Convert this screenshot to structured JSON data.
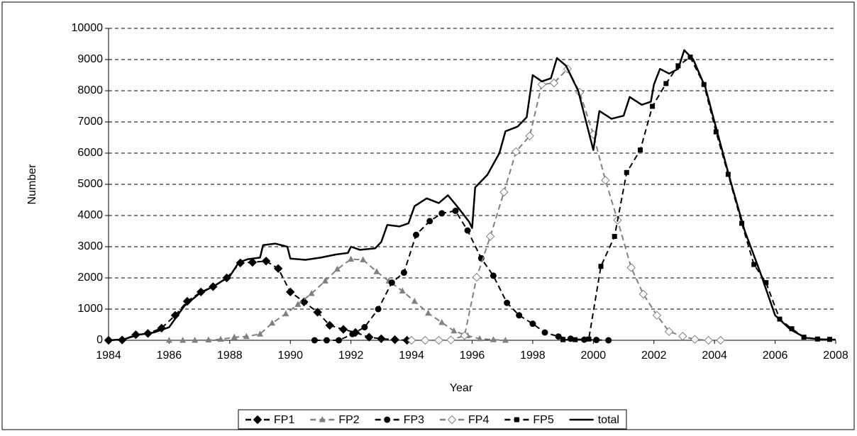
{
  "chart_data": {
    "type": "line",
    "x_label": "Year",
    "y_label": "Number",
    "xlim": [
      1984,
      2008
    ],
    "xticks": [
      1984,
      1986,
      1988,
      1990,
      1992,
      1994,
      1996,
      1998,
      2000,
      2002,
      2004,
      2006,
      2008
    ],
    "ylim": [
      0,
      10000
    ],
    "yticks": [
      0,
      1000,
      2000,
      3000,
      4000,
      5000,
      6000,
      7000,
      8000,
      9000,
      10000
    ],
    "grid": true,
    "legend": "bottom",
    "series": [
      {
        "name": "FP1",
        "color": "#000000",
        "dashed": true,
        "marker": "diamond",
        "x": [
          1984.0,
          1984.45,
          1984.9,
          1985.3,
          1985.75,
          1986.2,
          1986.6,
          1987.05,
          1987.45,
          1987.9,
          1988.35,
          1988.75,
          1989.2,
          1989.6,
          1990.0,
          1990.45,
          1990.9,
          1991.3,
          1991.75,
          1992.15,
          1992.6,
          1993.0,
          1993.45,
          1993.85
        ],
        "values": [
          0,
          10,
          180,
          220,
          390,
          800,
          1250,
          1550,
          1720,
          2000,
          2480,
          2500,
          2540,
          2300,
          1550,
          1230,
          900,
          480,
          350,
          250,
          100,
          50,
          20,
          0
        ]
      },
      {
        "name": "FP2",
        "color": "#808080",
        "dashed": true,
        "marker": "triangle",
        "x": [
          1986.0,
          1986.45,
          1986.85,
          1987.3,
          1987.7,
          1988.15,
          1988.55,
          1989.0,
          1989.4,
          1989.85,
          1990.25,
          1990.7,
          1991.15,
          1991.55,
          1992.0,
          1992.4,
          1992.85,
          1993.25,
          1993.7,
          1994.1,
          1994.55,
          1995.0,
          1995.4,
          1995.85,
          1996.25,
          1996.7,
          1997.1
        ],
        "values": [
          0,
          0,
          0,
          10,
          30,
          100,
          120,
          200,
          550,
          850,
          1150,
          1500,
          1900,
          2280,
          2600,
          2580,
          2200,
          1900,
          1580,
          1250,
          870,
          570,
          300,
          150,
          50,
          20,
          0
        ]
      },
      {
        "name": "FP3",
        "color": "#000000",
        "dashed": true,
        "marker": "circle",
        "x": [
          1990.8,
          1991.2,
          1991.6,
          1992.05,
          1992.45,
          1992.9,
          1993.35,
          1993.75,
          1994.15,
          1994.6,
          1995.0,
          1995.45,
          1995.85,
          1996.3,
          1996.7,
          1997.15,
          1997.55,
          1998.0,
          1998.4,
          1998.85,
          1999.25,
          1999.7,
          2000.1,
          2000.5
        ],
        "values": [
          0,
          0,
          0,
          200,
          420,
          1000,
          1850,
          2170,
          3380,
          3820,
          4070,
          4150,
          3520,
          2630,
          2070,
          1200,
          800,
          530,
          250,
          120,
          50,
          20,
          10,
          0
        ]
      },
      {
        "name": "FP4",
        "color": "#808080",
        "dashed": true,
        "marker": "open-diamond",
        "x": [
          1994.0,
          1994.45,
          1994.9,
          1995.3,
          1995.75,
          1996.15,
          1996.6,
          1997.05,
          1997.45,
          1997.9,
          1998.3,
          1998.7,
          1999.15,
          1999.55,
          2000.0,
          2000.4,
          2000.8,
          2001.25,
          2001.65,
          2002.1,
          2002.5,
          2002.95,
          2003.35,
          2003.8,
          2004.2
        ],
        "values": [
          0,
          0,
          0,
          10,
          150,
          2020,
          3330,
          4750,
          6050,
          6550,
          8200,
          8250,
          8700,
          7950,
          6600,
          5130,
          3850,
          2330,
          1480,
          800,
          280,
          130,
          30,
          0,
          0
        ]
      },
      {
        "name": "FP5",
        "color": "#000000",
        "dashed": true,
        "marker": "square",
        "x": [
          1999.0,
          1999.4,
          1999.85,
          2000.25,
          2000.7,
          2001.1,
          2001.55,
          2001.95,
          2002.4,
          2002.8,
          2003.2,
          2003.65,
          2004.05,
          2004.45,
          2004.9,
          2005.3,
          2005.7,
          2006.15,
          2006.55,
          2006.95,
          2007.4,
          2007.8
        ],
        "values": [
          20,
          20,
          40,
          2370,
          3330,
          5380,
          6100,
          7500,
          8230,
          8800,
          9080,
          8200,
          6680,
          5320,
          3750,
          2430,
          1850,
          680,
          370,
          100,
          40,
          30
        ]
      },
      {
        "name": "total",
        "color": "#000000",
        "dashed": false,
        "marker": "none",
        "x": [
          1984,
          1984.5,
          1985,
          1985.5,
          1986,
          1986.5,
          1987,
          1987.5,
          1988,
          1988.3,
          1988.6,
          1989,
          1989.1,
          1989.5,
          1989.9,
          1990,
          1990.5,
          1991,
          1991.5,
          1991.9,
          1992,
          1992.3,
          1992.8,
          1993,
          1993.2,
          1993.6,
          1993.9,
          1994.1,
          1994.5,
          1994.9,
          1995.2,
          1995.5,
          1995.9,
          1996,
          1996.1,
          1996.5,
          1996.9,
          1997.1,
          1997.5,
          1997.8,
          1998,
          1998.3,
          1998.6,
          1998.8,
          1999.1,
          1999.5,
          2000,
          2000.2,
          2000.6,
          2001,
          2001.2,
          2001.6,
          2001.9,
          2002,
          2002.2,
          2002.5,
          2002.8,
          2003,
          2003.3,
          2003.7,
          2004,
          2004.5,
          2005,
          2005.5,
          2006,
          2006.5,
          2007,
          2007.5,
          2008
        ],
        "values": [
          0,
          30,
          180,
          250,
          420,
          1100,
          1500,
          1750,
          2050,
          2500,
          2600,
          2650,
          3050,
          3100,
          3000,
          2620,
          2580,
          2650,
          2750,
          2800,
          3000,
          2900,
          2950,
          3150,
          3700,
          3650,
          3750,
          4300,
          4550,
          4400,
          4650,
          4300,
          3800,
          3600,
          4900,
          5300,
          6000,
          6700,
          6850,
          7150,
          8500,
          8300,
          8400,
          9050,
          8800,
          8000,
          6100,
          7350,
          7100,
          7200,
          7800,
          7550,
          7650,
          8200,
          8700,
          8550,
          8700,
          9300,
          9000,
          8100,
          7000,
          5200,
          3500,
          2200,
          800,
          350,
          80,
          30,
          20
        ]
      }
    ]
  }
}
